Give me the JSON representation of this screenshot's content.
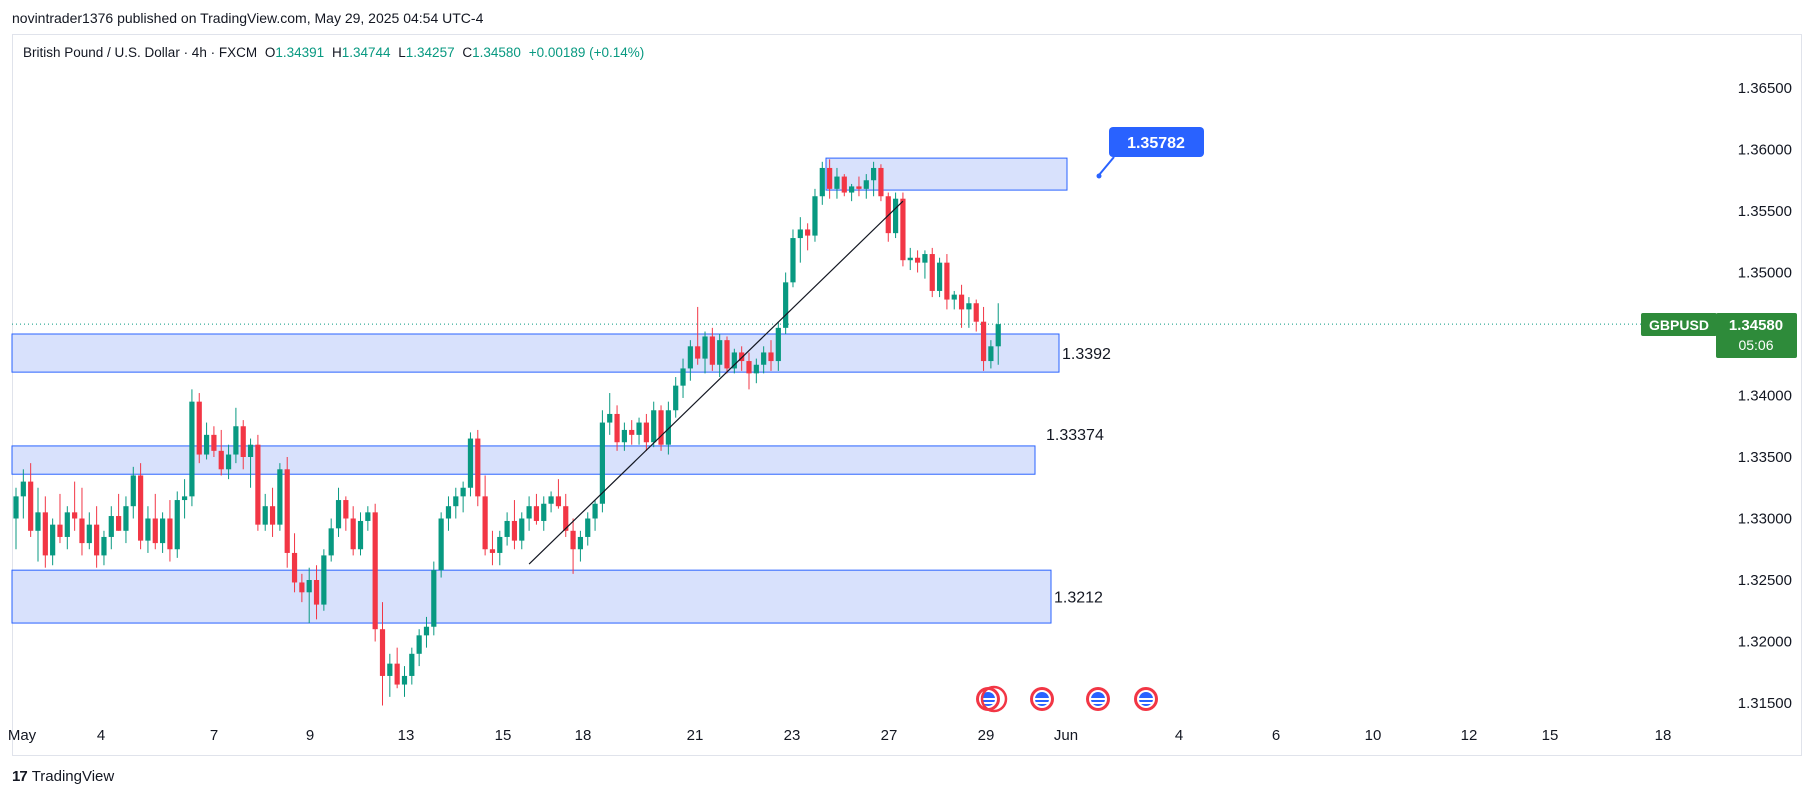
{
  "publisher_line": "novintrader1376 published on TradingView.com, May 29, 2025 04:54 UTC-4",
  "legend": {
    "symbol": "British Pound / U.S. Dollar · 4h · FXCM",
    "o_label": "O",
    "o_value": "1.34391",
    "h_label": "H",
    "h_value": "1.34744",
    "l_label": "L",
    "l_value": "1.34257",
    "c_label": "C",
    "c_value": "1.34580",
    "change": "+0.00189 (+0.14%)"
  },
  "price_tag": {
    "symbol": "GBPUSD",
    "price": "1.34580",
    "countdown": "05:06"
  },
  "callout": {
    "value": "1.35782"
  },
  "footer": {
    "brand": "TradingView",
    "logo_mark": "17"
  },
  "colors": {
    "up": "#089981",
    "down": "#f23645",
    "zone_fill": "#d1dcfc",
    "zone_stroke": "#2962ff",
    "callout": "#2962ff",
    "tag": "#22ab94",
    "tag_dark": "#2e8b3a"
  },
  "chart_data": {
    "type": "candlestick",
    "title": "British Pound / U.S. Dollar · 4h · FXCM",
    "ylim": [
      1.3125,
      1.3675
    ],
    "y_ticks": [
      "1.36500",
      "1.36000",
      "1.35500",
      "1.35000",
      "1.34000",
      "1.33500",
      "1.33000",
      "1.32500",
      "1.32000",
      "1.31500"
    ],
    "x_ticks": [
      "May",
      "4",
      "7",
      "9",
      "13",
      "15",
      "18",
      "21",
      "23",
      "27",
      "29",
      "Jun",
      "4",
      "6",
      "10",
      "12",
      "15",
      "18"
    ],
    "current_price": 1.3458,
    "zones": [
      {
        "label": "1.3392",
        "top": 1.345,
        "bottom": 1.3419
      },
      {
        "label": "1.33374",
        "top": 1.3359,
        "bottom": 1.3336
      },
      {
        "label": "1.3212",
        "top": 1.3258,
        "bottom": 1.3215
      },
      {
        "label": "",
        "top": 1.3593,
        "bottom": 1.3567
      }
    ],
    "trendline": {
      "from": {
        "bar": 70,
        "price": 1.3263
      },
      "to": {
        "bar": 121,
        "price": 1.3558
      }
    },
    "candles": [
      [
        1.33,
        1.3325,
        1.3275,
        1.3318
      ],
      [
        1.3318,
        1.334,
        1.33,
        1.333
      ],
      [
        1.333,
        1.3345,
        1.3285,
        1.329
      ],
      [
        1.329,
        1.3325,
        1.3265,
        1.3305
      ],
      [
        1.3305,
        1.3318,
        1.326,
        1.327
      ],
      [
        1.327,
        1.33,
        1.3262,
        1.3295
      ],
      [
        1.3295,
        1.332,
        1.328,
        1.3285
      ],
      [
        1.3285,
        1.331,
        1.3275,
        1.3305
      ],
      [
        1.3305,
        1.333,
        1.329,
        1.33
      ],
      [
        1.33,
        1.3325,
        1.327,
        1.328
      ],
      [
        1.328,
        1.3305,
        1.3275,
        1.3295
      ],
      [
        1.3295,
        1.331,
        1.326,
        1.327
      ],
      [
        1.327,
        1.329,
        1.3262,
        1.3285
      ],
      [
        1.3285,
        1.331,
        1.3275,
        1.3302
      ],
      [
        1.3302,
        1.332,
        1.329,
        1.329
      ],
      [
        1.329,
        1.3318,
        1.328,
        1.331
      ],
      [
        1.331,
        1.3342,
        1.33,
        1.3335
      ],
      [
        1.3335,
        1.3345,
        1.3275,
        1.3282
      ],
      [
        1.3282,
        1.331,
        1.3272,
        1.33
      ],
      [
        1.33,
        1.332,
        1.3275,
        1.328
      ],
      [
        1.328,
        1.3305,
        1.3272,
        1.33
      ],
      [
        1.33,
        1.3315,
        1.3265,
        1.3275
      ],
      [
        1.3275,
        1.3322,
        1.3268,
        1.3315
      ],
      [
        1.3315,
        1.3332,
        1.33,
        1.3318
      ],
      [
        1.3318,
        1.3405,
        1.331,
        1.3395
      ],
      [
        1.3395,
        1.3402,
        1.3345,
        1.3352
      ],
      [
        1.3352,
        1.3378,
        1.3348,
        1.3368
      ],
      [
        1.3368,
        1.3375,
        1.335,
        1.3355
      ],
      [
        1.3355,
        1.3372,
        1.3335,
        1.334
      ],
      [
        1.334,
        1.336,
        1.3332,
        1.3352
      ],
      [
        1.3352,
        1.339,
        1.3345,
        1.3375
      ],
      [
        1.3375,
        1.338,
        1.334,
        1.335
      ],
      [
        1.335,
        1.3365,
        1.3325,
        1.336
      ],
      [
        1.336,
        1.3368,
        1.329,
        1.3295
      ],
      [
        1.3295,
        1.332,
        1.329,
        1.331
      ],
      [
        1.331,
        1.3325,
        1.3285,
        1.3295
      ],
      [
        1.3295,
        1.3345,
        1.329,
        1.334
      ],
      [
        1.334,
        1.335,
        1.326,
        1.3272
      ],
      [
        1.3272,
        1.3288,
        1.324,
        1.3248
      ],
      [
        1.3248,
        1.3255,
        1.3232,
        1.324
      ],
      [
        1.324,
        1.326,
        1.3215,
        1.325
      ],
      [
        1.325,
        1.3262,
        1.3218,
        1.323
      ],
      [
        1.323,
        1.3275,
        1.3225,
        1.327
      ],
      [
        1.327,
        1.33,
        1.3265,
        1.3292
      ],
      [
        1.3292,
        1.3325,
        1.3285,
        1.3315
      ],
      [
        1.3315,
        1.3318,
        1.329,
        1.33
      ],
      [
        1.33,
        1.331,
        1.327,
        1.3275
      ],
      [
        1.3275,
        1.3305,
        1.327,
        1.3298
      ],
      [
        1.3298,
        1.331,
        1.329,
        1.3305
      ],
      [
        1.3305,
        1.3312,
        1.32,
        1.321
      ],
      [
        1.321,
        1.3232,
        1.3148,
        1.3172
      ],
      [
        1.3172,
        1.319,
        1.3155,
        1.3182
      ],
      [
        1.3182,
        1.3195,
        1.3162,
        1.3165
      ],
      [
        1.3165,
        1.318,
        1.3155,
        1.3172
      ],
      [
        1.3172,
        1.3195,
        1.3165,
        1.319
      ],
      [
        1.319,
        1.321,
        1.318,
        1.3205
      ],
      [
        1.3205,
        1.322,
        1.3195,
        1.3212
      ],
      [
        1.3212,
        1.3265,
        1.3205,
        1.3258
      ],
      [
        1.3258,
        1.3305,
        1.3252,
        1.33
      ],
      [
        1.33,
        1.3318,
        1.329,
        1.331
      ],
      [
        1.331,
        1.3325,
        1.33,
        1.3318
      ],
      [
        1.3318,
        1.333,
        1.3305,
        1.3325
      ],
      [
        1.3325,
        1.337,
        1.3318,
        1.3365
      ],
      [
        1.3365,
        1.3372,
        1.331,
        1.3318
      ],
      [
        1.3318,
        1.3335,
        1.327,
        1.3275
      ],
      [
        1.3275,
        1.329,
        1.3262,
        1.3272
      ],
      [
        1.3272,
        1.329,
        1.3262,
        1.3285
      ],
      [
        1.3285,
        1.3305,
        1.3278,
        1.3298
      ],
      [
        1.3298,
        1.3315,
        1.3275,
        1.3282
      ],
      [
        1.3282,
        1.3305,
        1.3275,
        1.33
      ],
      [
        1.33,
        1.3318,
        1.329,
        1.331
      ],
      [
        1.331,
        1.332,
        1.3295,
        1.3298
      ],
      [
        1.3298,
        1.3318,
        1.329,
        1.3312
      ],
      [
        1.3312,
        1.3322,
        1.3305,
        1.3318
      ],
      [
        1.3318,
        1.3332,
        1.3308,
        1.331
      ],
      [
        1.331,
        1.332,
        1.3285,
        1.329
      ],
      [
        1.329,
        1.33,
        1.3255,
        1.3275
      ],
      [
        1.3275,
        1.329,
        1.3265,
        1.3285
      ],
      [
        1.3285,
        1.3305,
        1.3278,
        1.33
      ],
      [
        1.33,
        1.3315,
        1.329,
        1.3312
      ],
      [
        1.3312,
        1.3388,
        1.3305,
        1.3378
      ],
      [
        1.3378,
        1.3402,
        1.3368,
        1.3385
      ],
      [
        1.3385,
        1.3392,
        1.3355,
        1.3362
      ],
      [
        1.3362,
        1.3378,
        1.3355,
        1.3372
      ],
      [
        1.3372,
        1.338,
        1.336,
        1.3368
      ],
      [
        1.3368,
        1.3382,
        1.336,
        1.3378
      ],
      [
        1.3378,
        1.3385,
        1.3355,
        1.3362
      ],
      [
        1.3362,
        1.3395,
        1.3358,
        1.3388
      ],
      [
        1.3388,
        1.3392,
        1.3355,
        1.336
      ],
      [
        1.336,
        1.3395,
        1.3352,
        1.3388
      ],
      [
        1.3388,
        1.3415,
        1.3382,
        1.3408
      ],
      [
        1.3408,
        1.343,
        1.3398,
        1.3422
      ],
      [
        1.3422,
        1.3445,
        1.3412,
        1.344
      ],
      [
        1.344,
        1.3472,
        1.3425,
        1.343
      ],
      [
        1.343,
        1.3452,
        1.3418,
        1.3448
      ],
      [
        1.3448,
        1.3455,
        1.342,
        1.3425
      ],
      [
        1.3425,
        1.345,
        1.3415,
        1.3445
      ],
      [
        1.3445,
        1.3448,
        1.3418,
        1.3422
      ],
      [
        1.3422,
        1.3438,
        1.3418,
        1.3435
      ],
      [
        1.3435,
        1.344,
        1.342,
        1.3428
      ],
      [
        1.3428,
        1.3435,
        1.3405,
        1.3418
      ],
      [
        1.3418,
        1.343,
        1.341,
        1.3425
      ],
      [
        1.3425,
        1.344,
        1.3418,
        1.3435
      ],
      [
        1.3435,
        1.3445,
        1.342,
        1.3428
      ],
      [
        1.3428,
        1.346,
        1.342,
        1.3455
      ],
      [
        1.3455,
        1.35,
        1.345,
        1.3492
      ],
      [
        1.3492,
        1.3535,
        1.3488,
        1.3528
      ],
      [
        1.3528,
        1.3545,
        1.3508,
        1.3535
      ],
      [
        1.3535,
        1.354,
        1.3518,
        1.353
      ],
      [
        1.353,
        1.3568,
        1.3525,
        1.3562
      ],
      [
        1.3562,
        1.359,
        1.3555,
        1.3585
      ],
      [
        1.3585,
        1.3592,
        1.356,
        1.3568
      ],
      [
        1.3568,
        1.3585,
        1.356,
        1.3578
      ],
      [
        1.3578,
        1.358,
        1.3562,
        1.3565
      ],
      [
        1.3565,
        1.3572,
        1.3558,
        1.357
      ],
      [
        1.357,
        1.3578,
        1.3562,
        1.3568
      ],
      [
        1.3568,
        1.358,
        1.356,
        1.3575
      ],
      [
        1.3575,
        1.359,
        1.3562,
        1.3585
      ],
      [
        1.3585,
        1.3588,
        1.3558,
        1.3562
      ],
      [
        1.3562,
        1.3565,
        1.3525,
        1.3532
      ],
      [
        1.3532,
        1.3565,
        1.3528,
        1.356
      ],
      [
        1.356,
        1.3565,
        1.3505,
        1.351
      ],
      [
        1.351,
        1.352,
        1.3502,
        1.3512
      ],
      [
        1.3512,
        1.3518,
        1.35,
        1.3508
      ],
      [
        1.3508,
        1.3518,
        1.3495,
        1.3515
      ],
      [
        1.3515,
        1.352,
        1.348,
        1.3485
      ],
      [
        1.3485,
        1.3512,
        1.348,
        1.3508
      ],
      [
        1.3508,
        1.3515,
        1.347,
        1.3478
      ],
      [
        1.3478,
        1.3485,
        1.347,
        1.3482
      ],
      [
        1.3482,
        1.349,
        1.3455,
        1.347
      ],
      [
        1.347,
        1.348,
        1.3455,
        1.3475
      ],
      [
        1.3475,
        1.3478,
        1.3452,
        1.346
      ],
      [
        1.346,
        1.3472,
        1.342,
        1.3428
      ],
      [
        1.3428,
        1.3445,
        1.3422,
        1.344
      ],
      [
        1.344,
        1.3475,
        1.3425,
        1.3458
      ]
    ]
  }
}
